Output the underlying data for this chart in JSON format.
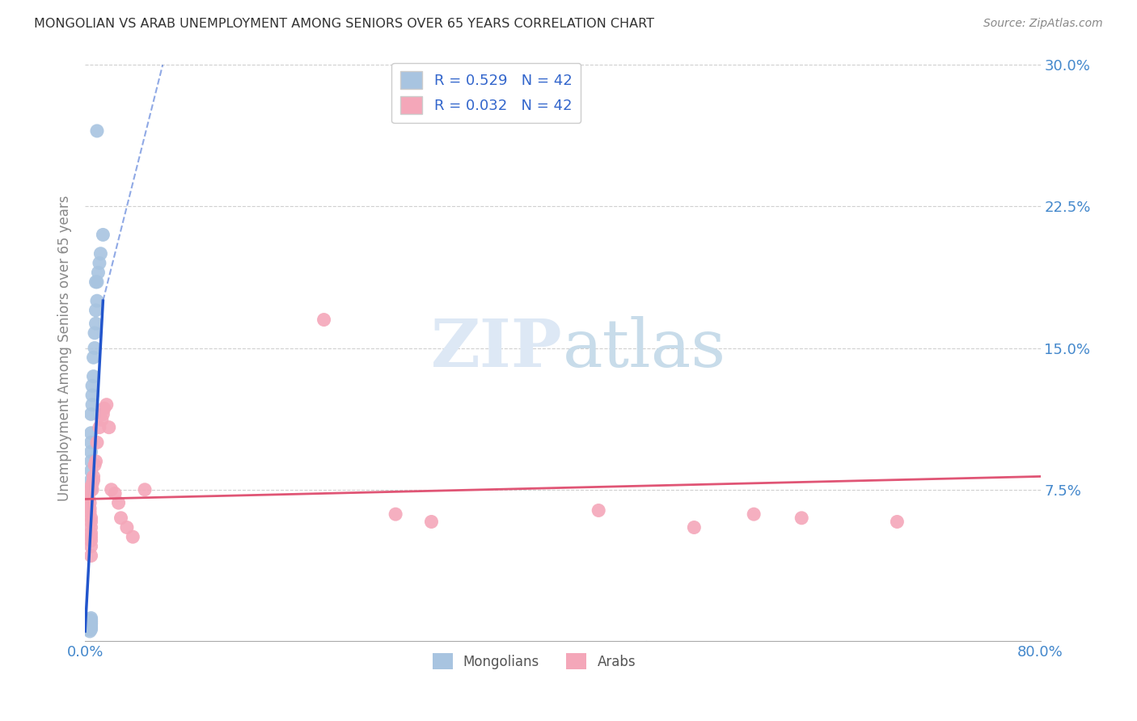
{
  "title": "MONGOLIAN VS ARAB UNEMPLOYMENT AMONG SENIORS OVER 65 YEARS CORRELATION CHART",
  "source": "Source: ZipAtlas.com",
  "ylabel": "Unemployment Among Seniors over 65 years",
  "mongolian_R": 0.529,
  "mongolian_N": 42,
  "arab_R": 0.032,
  "arab_N": 42,
  "mongolian_color": "#a8c4e0",
  "arab_color": "#f4a7b9",
  "trend_mongolian_color": "#2255cc",
  "trend_arab_color": "#e05575",
  "xlim": [
    0,
    0.8
  ],
  "ylim": [
    -0.005,
    0.305
  ],
  "yticks": [
    0.075,
    0.15,
    0.225,
    0.3
  ],
  "background_color": "#ffffff",
  "grid_color": "#d0d0d0",
  "tick_color": "#4488cc",
  "label_color": "#3366cc",
  "watermark_color": "#dde8f5",
  "mongolian_x": [
    0.002,
    0.003,
    0.003,
    0.004,
    0.004,
    0.004,
    0.005,
    0.005,
    0.005,
    0.005,
    0.005,
    0.005,
    0.005,
    0.005,
    0.005,
    0.005,
    0.005,
    0.005,
    0.005,
    0.005,
    0.005,
    0.005,
    0.005,
    0.005,
    0.005,
    0.006,
    0.006,
    0.006,
    0.007,
    0.007,
    0.008,
    0.008,
    0.009,
    0.009,
    0.01,
    0.01,
    0.011,
    0.012,
    0.013,
    0.015,
    0.01,
    0.009
  ],
  "mongolian_y": [
    0.002,
    0.001,
    0.003,
    0.0,
    0.002,
    0.003,
    0.001,
    0.002,
    0.003,
    0.004,
    0.004,
    0.005,
    0.005,
    0.006,
    0.006,
    0.007,
    0.075,
    0.076,
    0.08,
    0.085,
    0.09,
    0.095,
    0.1,
    0.105,
    0.115,
    0.12,
    0.125,
    0.13,
    0.135,
    0.145,
    0.15,
    0.158,
    0.163,
    0.17,
    0.175,
    0.185,
    0.19,
    0.195,
    0.2,
    0.21,
    0.265,
    0.185
  ],
  "arab_x": [
    0.002,
    0.003,
    0.003,
    0.004,
    0.004,
    0.004,
    0.005,
    0.005,
    0.005,
    0.005,
    0.005,
    0.005,
    0.005,
    0.005,
    0.006,
    0.006,
    0.007,
    0.007,
    0.008,
    0.009,
    0.01,
    0.012,
    0.014,
    0.015,
    0.016,
    0.018,
    0.02,
    0.022,
    0.025,
    0.028,
    0.03,
    0.035,
    0.04,
    0.05,
    0.2,
    0.26,
    0.29,
    0.43,
    0.51,
    0.56,
    0.6,
    0.68
  ],
  "arab_y": [
    0.075,
    0.073,
    0.07,
    0.068,
    0.065,
    0.063,
    0.06,
    0.058,
    0.055,
    0.052,
    0.05,
    0.048,
    0.045,
    0.04,
    0.075,
    0.078,
    0.08,
    0.082,
    0.088,
    0.09,
    0.1,
    0.108,
    0.112,
    0.115,
    0.118,
    0.12,
    0.108,
    0.075,
    0.073,
    0.068,
    0.06,
    0.055,
    0.05,
    0.075,
    0.165,
    0.062,
    0.058,
    0.064,
    0.055,
    0.062,
    0.06,
    0.058
  ],
  "mongo_trend_x0": 0.0,
  "mongo_trend_y0": 0.0,
  "mongo_trend_x1": 0.015,
  "mongo_trend_y1": 0.175,
  "mongo_trend_xd0": 0.015,
  "mongo_trend_yd0": 0.175,
  "mongo_trend_xd1": 0.065,
  "mongo_trend_yd1": 0.3,
  "arab_trend_x0": 0.0,
  "arab_trend_y0": 0.07,
  "arab_trend_x1": 0.8,
  "arab_trend_y1": 0.082
}
